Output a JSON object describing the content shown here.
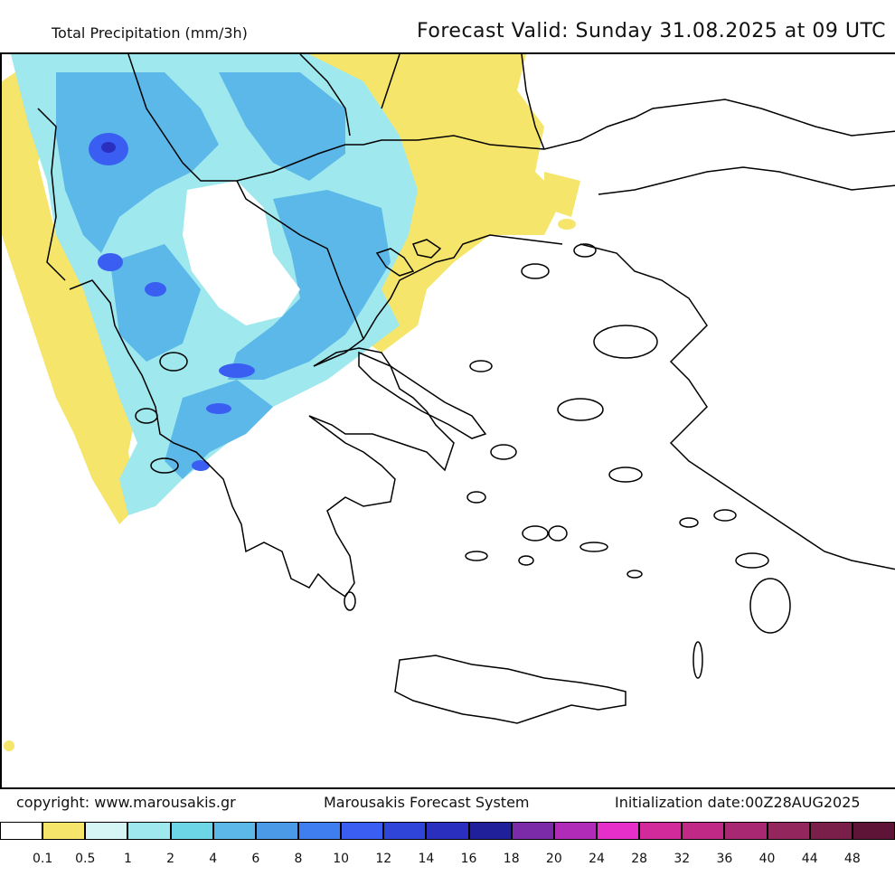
{
  "header": {
    "title": "Total Precipitation (mm/3h)",
    "forecast_valid": "Forecast Valid:  Sunday 31.08.2025 at 09 UTC"
  },
  "footer": {
    "copyright": "copyright: www.marousakis.gr",
    "system": "Marousakis Forecast System",
    "init": "Initialization date:00Z28AUG2025"
  },
  "legend": {
    "colors": [
      "#ffffff",
      "#f5e56b",
      "#d6f5f5",
      "#9ee8ee",
      "#6dd6e6",
      "#5cb8e8",
      "#4a9ae8",
      "#3f7ef0",
      "#3a5ef2",
      "#2f44d8",
      "#2a2fc0",
      "#20209a",
      "#7b2aa8",
      "#b02bb8",
      "#e62ec8",
      "#d22a9a",
      "#c02a86",
      "#a82872",
      "#94265e",
      "#7a1f4a",
      "#5e1436"
    ],
    "labels": [
      "0.1",
      "0.5",
      "1",
      "2",
      "4",
      "6",
      "8",
      "10",
      "12",
      "14",
      "16",
      "18",
      "20",
      "24",
      "28",
      "32",
      "36",
      "40",
      "44",
      "48"
    ]
  }
}
